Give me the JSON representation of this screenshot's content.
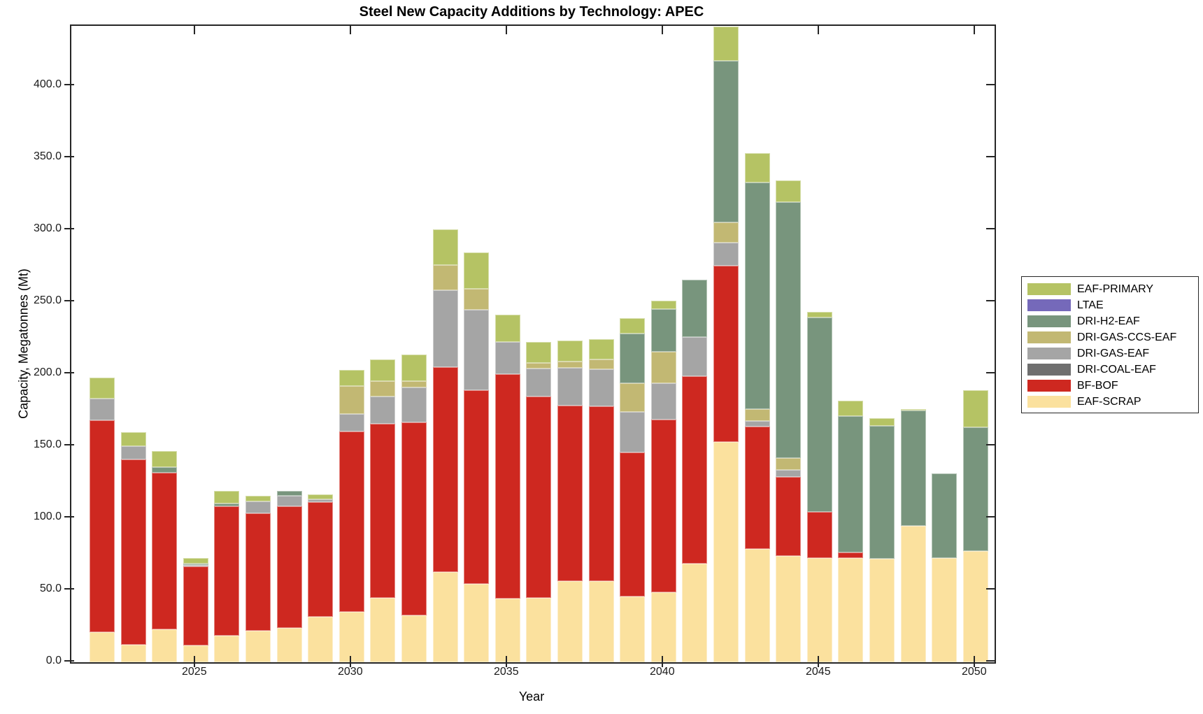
{
  "chart_data": {
    "type": "bar",
    "stacked": true,
    "title": "Steel New Capacity Additions by Technology: APEC",
    "xlabel": "Year",
    "ylabel": "Capacity, Megatonnes (Mt)",
    "ylim": [
      0,
      442
    ],
    "grid": false,
    "legend_position": "right-outside",
    "categories": [
      2022,
      2023,
      2024,
      2025,
      2026,
      2027,
      2028,
      2029,
      2030,
      2031,
      2032,
      2033,
      2034,
      2035,
      2036,
      2037,
      2038,
      2039,
      2040,
      2041,
      2042,
      2043,
      2044,
      2045,
      2046,
      2047,
      2048,
      2049,
      2050
    ],
    "xticks": [
      2025,
      2030,
      2035,
      2040,
      2045,
      2050
    ],
    "xtick_labels": [
      "2025",
      "2030",
      "2035",
      "2040",
      "2045",
      "2050"
    ],
    "yticks": [
      0,
      50,
      100,
      150,
      200,
      250,
      300,
      350,
      400
    ],
    "ytick_labels": [
      "0.0",
      "50.0",
      "100.0",
      "150.0",
      "200.0",
      "250.0",
      "300.0",
      "350.0",
      "400.0"
    ],
    "series": [
      {
        "name": "EAF-SCRAP",
        "color": "#FBE19E",
        "values": [
          21,
          12,
          23,
          11.5,
          18.5,
          22,
          24,
          31.5,
          35,
          44.5,
          32.5,
          62.5,
          54.5,
          44,
          44.5,
          56.5,
          56.5,
          45.5,
          48.5,
          68.5,
          153,
          78.5,
          74,
          72.5,
          72.5,
          72,
          94.5,
          72.5,
          77
        ]
      },
      {
        "name": "BF-BOF",
        "color": "#CE2820",
        "values": [
          147,
          129,
          108.5,
          55,
          90,
          81.5,
          84.5,
          79.5,
          125.5,
          121,
          134,
          142.5,
          134.5,
          156,
          140,
          122,
          121.5,
          100,
          120,
          130,
          122.5,
          85,
          54.5,
          32,
          4,
          0,
          0,
          0,
          0
        ]
      },
      {
        "name": "DRI-COAL-EAF",
        "color": "#6F6F6F",
        "values": [
          0,
          0,
          0,
          0,
          0,
          0,
          0,
          0,
          0,
          0,
          0,
          0,
          0,
          0,
          0,
          0,
          0,
          0,
          0,
          0,
          0,
          0,
          0,
          0,
          0,
          0,
          0,
          0,
          0
        ]
      },
      {
        "name": "DRI-GAS-EAF",
        "color": "#A5A5A5",
        "values": [
          15,
          9,
          0,
          1,
          0,
          8,
          7,
          2,
          12,
          19,
          24.5,
          53.5,
          56,
          22.5,
          19.5,
          26,
          25.5,
          28.5,
          25.5,
          27.5,
          16,
          4,
          5,
          0,
          0,
          0,
          0,
          0,
          0
        ]
      },
      {
        "name": "DRI-GAS-CCS-EAF",
        "color": "#C2B873",
        "values": [
          0,
          0,
          0,
          0,
          0,
          0,
          0,
          0,
          19.5,
          11,
          4.5,
          17.5,
          14.5,
          0,
          4,
          4.5,
          7,
          20,
          21.5,
          0,
          14,
          8.5,
          8.5,
          0,
          0,
          0,
          0,
          0,
          0
        ]
      },
      {
        "name": "DRI-H2-EAF",
        "color": "#78957D",
        "values": [
          0,
          0,
          4,
          1,
          2,
          0,
          3.5,
          0,
          0,
          0,
          0,
          0,
          0,
          0,
          0,
          0,
          0,
          34.5,
          30,
          39.5,
          112,
          157,
          177.5,
          135,
          94.5,
          92,
          80.5,
          58.5,
          86
        ]
      },
      {
        "name": "LTAE",
        "color": "#7569BA",
        "values": [
          0,
          0,
          0,
          0,
          0,
          0,
          0,
          0,
          0,
          0,
          0,
          0,
          0,
          0,
          0,
          0,
          0,
          0,
          0,
          0,
          0,
          0,
          0,
          0,
          0,
          0,
          0,
          0,
          0
        ]
      },
      {
        "name": "EAF-PRIMARY",
        "color": "#B5C364",
        "values": [
          14.5,
          10,
          11,
          4,
          8.5,
          4,
          0,
          3.5,
          11,
          15,
          18,
          24.5,
          25,
          19,
          14.5,
          14.5,
          14,
          10.5,
          5.5,
          0,
          24,
          20.5,
          15,
          4,
          10.5,
          5.5,
          1,
          0,
          26
        ]
      }
    ],
    "legend_entries_top_to_bottom": [
      "EAF-PRIMARY",
      "LTAE",
      "DRI-H2-EAF",
      "DRI-GAS-CCS-EAF",
      "DRI-GAS-EAF",
      "DRI-COAL-EAF",
      "BF-BOF",
      "EAF-SCRAP"
    ]
  }
}
